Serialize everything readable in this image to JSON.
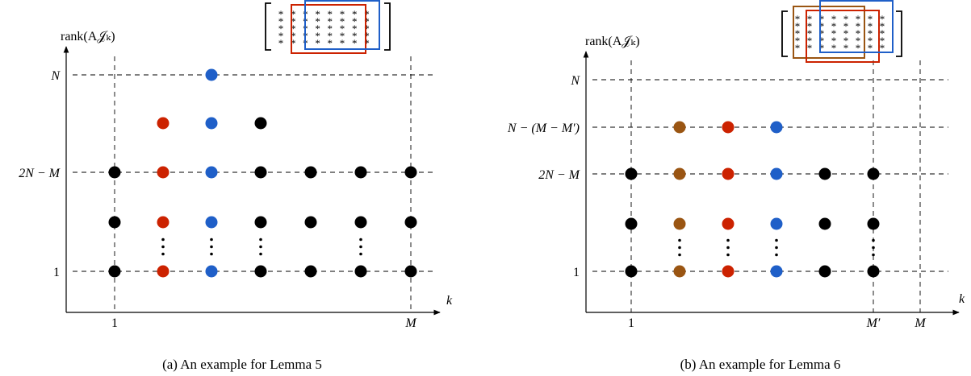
{
  "panels": [
    {
      "caption": "(a) An example for Lemma 5",
      "y_axis_label": "rank(A𝒥ₖ)",
      "x_axis_label": "k",
      "y_ticks": [
        "N",
        "",
        "2N − M",
        "",
        "1"
      ],
      "x_ticks": [
        "1",
        "M"
      ],
      "colors": {
        "black": "#000000",
        "red": "#cc2200",
        "blue": "#1f5fc8"
      },
      "dots": [
        {
          "col": 0,
          "level": 2,
          "color": "black"
        },
        {
          "col": 0,
          "level": 3,
          "color": "black"
        },
        {
          "col": 0,
          "level": 4,
          "color": "black"
        },
        {
          "col": 1,
          "level": 1,
          "color": "red"
        },
        {
          "col": 1,
          "level": 2,
          "color": "red"
        },
        {
          "col": 1,
          "level": 3,
          "color": "red"
        },
        {
          "col": 1,
          "level": 4,
          "color": "red"
        },
        {
          "col": 2,
          "level": 0,
          "color": "blue"
        },
        {
          "col": 2,
          "level": 1,
          "color": "blue"
        },
        {
          "col": 2,
          "level": 2,
          "color": "blue"
        },
        {
          "col": 2,
          "level": 3,
          "color": "blue"
        },
        {
          "col": 2,
          "level": 4,
          "color": "blue"
        },
        {
          "col": 3,
          "level": 1,
          "color": "black"
        },
        {
          "col": 3,
          "level": 2,
          "color": "black"
        },
        {
          "col": 3,
          "level": 3,
          "color": "black"
        },
        {
          "col": 3,
          "level": 4,
          "color": "black"
        },
        {
          "col": 4,
          "level": 2,
          "color": "black"
        },
        {
          "col": 4,
          "level": 3,
          "color": "black"
        },
        {
          "col": 4,
          "level": 4,
          "color": "black"
        },
        {
          "col": 5,
          "level": 2,
          "color": "black"
        },
        {
          "col": 5,
          "level": 3,
          "color": "black"
        },
        {
          "col": 5,
          "level": 4,
          "color": "black"
        },
        {
          "col": 6,
          "level": 2,
          "color": "black"
        },
        {
          "col": 6,
          "level": 3,
          "color": "black"
        },
        {
          "col": 6,
          "level": 4,
          "color": "black"
        }
      ],
      "vdots_cols": [
        1,
        2,
        3,
        5
      ],
      "matrix": {
        "rows": 5,
        "cols": 8,
        "symbol": "*",
        "boxes": [
          "red",
          "blue"
        ]
      }
    },
    {
      "caption": "(b) An example for Lemma 6",
      "y_axis_label": "rank(A𝒥ₖ)",
      "x_axis_label": "k",
      "y_ticks": [
        "N",
        "N − (M − M′)",
        "2N − M",
        "",
        "1"
      ],
      "x_ticks": [
        "1",
        "M′",
        "M"
      ],
      "colors": {
        "black": "#000000",
        "red": "#cc2200",
        "blue": "#1f5fc8",
        "brown": "#9a5512"
      },
      "dots": [
        {
          "col": 0,
          "level": 2,
          "color": "black"
        },
        {
          "col": 0,
          "level": 3,
          "color": "black"
        },
        {
          "col": 0,
          "level": 4,
          "color": "black"
        },
        {
          "col": 1,
          "level": 1,
          "color": "brown"
        },
        {
          "col": 1,
          "level": 2,
          "color": "brown"
        },
        {
          "col": 1,
          "level": 3,
          "color": "brown"
        },
        {
          "col": 1,
          "level": 4,
          "color": "brown"
        },
        {
          "col": 2,
          "level": 1,
          "color": "red"
        },
        {
          "col": 2,
          "level": 2,
          "color": "red"
        },
        {
          "col": 2,
          "level": 3,
          "color": "red"
        },
        {
          "col": 2,
          "level": 4,
          "color": "red"
        },
        {
          "col": 3,
          "level": 1,
          "color": "blue"
        },
        {
          "col": 3,
          "level": 2,
          "color": "blue"
        },
        {
          "col": 3,
          "level": 3,
          "color": "blue"
        },
        {
          "col": 3,
          "level": 4,
          "color": "blue"
        },
        {
          "col": 4,
          "level": 2,
          "color": "black"
        },
        {
          "col": 4,
          "level": 3,
          "color": "black"
        },
        {
          "col": 4,
          "level": 4,
          "color": "black"
        },
        {
          "col": 5,
          "level": 2,
          "color": "black"
        },
        {
          "col": 5,
          "level": 3,
          "color": "black"
        },
        {
          "col": 5,
          "level": 4,
          "color": "black"
        }
      ],
      "vdots_cols": [
        1,
        2,
        3,
        5
      ],
      "matrix": {
        "rows": 5,
        "cols": 8,
        "symbol": "*",
        "boxes": [
          "brown",
          "red",
          "blue"
        ]
      }
    }
  ]
}
